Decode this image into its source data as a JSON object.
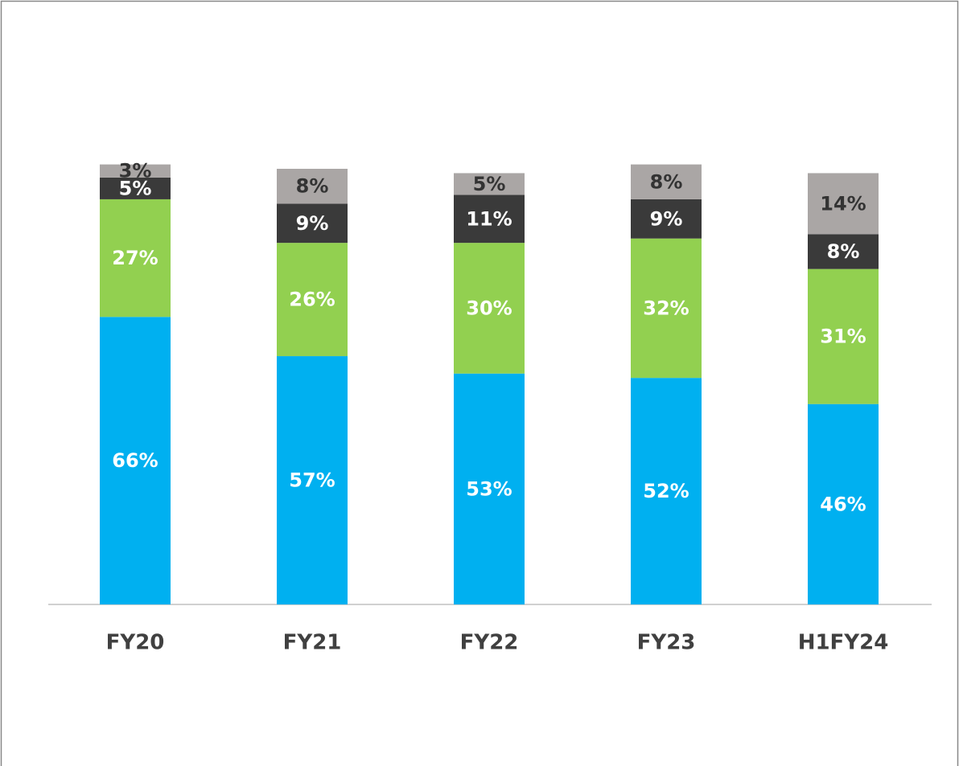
{
  "chart_data": {
    "type": "stacked_bar",
    "categories": [
      "FY20",
      "FY21",
      "FY22",
      "FY23",
      "H1FY24"
    ],
    "series": [
      {
        "color": "#00b0f0",
        "label_color": "#ffffff",
        "values": [
          66,
          57,
          53,
          52,
          46
        ],
        "value_labels": [
          "66%",
          "57%",
          "53%",
          "52%",
          "46%"
        ]
      },
      {
        "color": "#92d050",
        "label_color": "#ffffff",
        "values": [
          27,
          26,
          30,
          32,
          31
        ],
        "value_labels": [
          "27%",
          "26%",
          "30%",
          "32%",
          "31%"
        ]
      },
      {
        "color": "#3a3a3a",
        "label_color": "#ffffff",
        "values": [
          5,
          9,
          11,
          9,
          8
        ],
        "value_labels": [
          "5%",
          "9%",
          "11%",
          "9%",
          "8%"
        ]
      },
      {
        "color": "#aaa6a5",
        "label_color": "#333333",
        "values": [
          3,
          8,
          5,
          8,
          14
        ],
        "value_labels": [
          "3%",
          "8%",
          "5%",
          "8%",
          "14%"
        ]
      }
    ],
    "ylim": [
      0,
      100
    ]
  }
}
